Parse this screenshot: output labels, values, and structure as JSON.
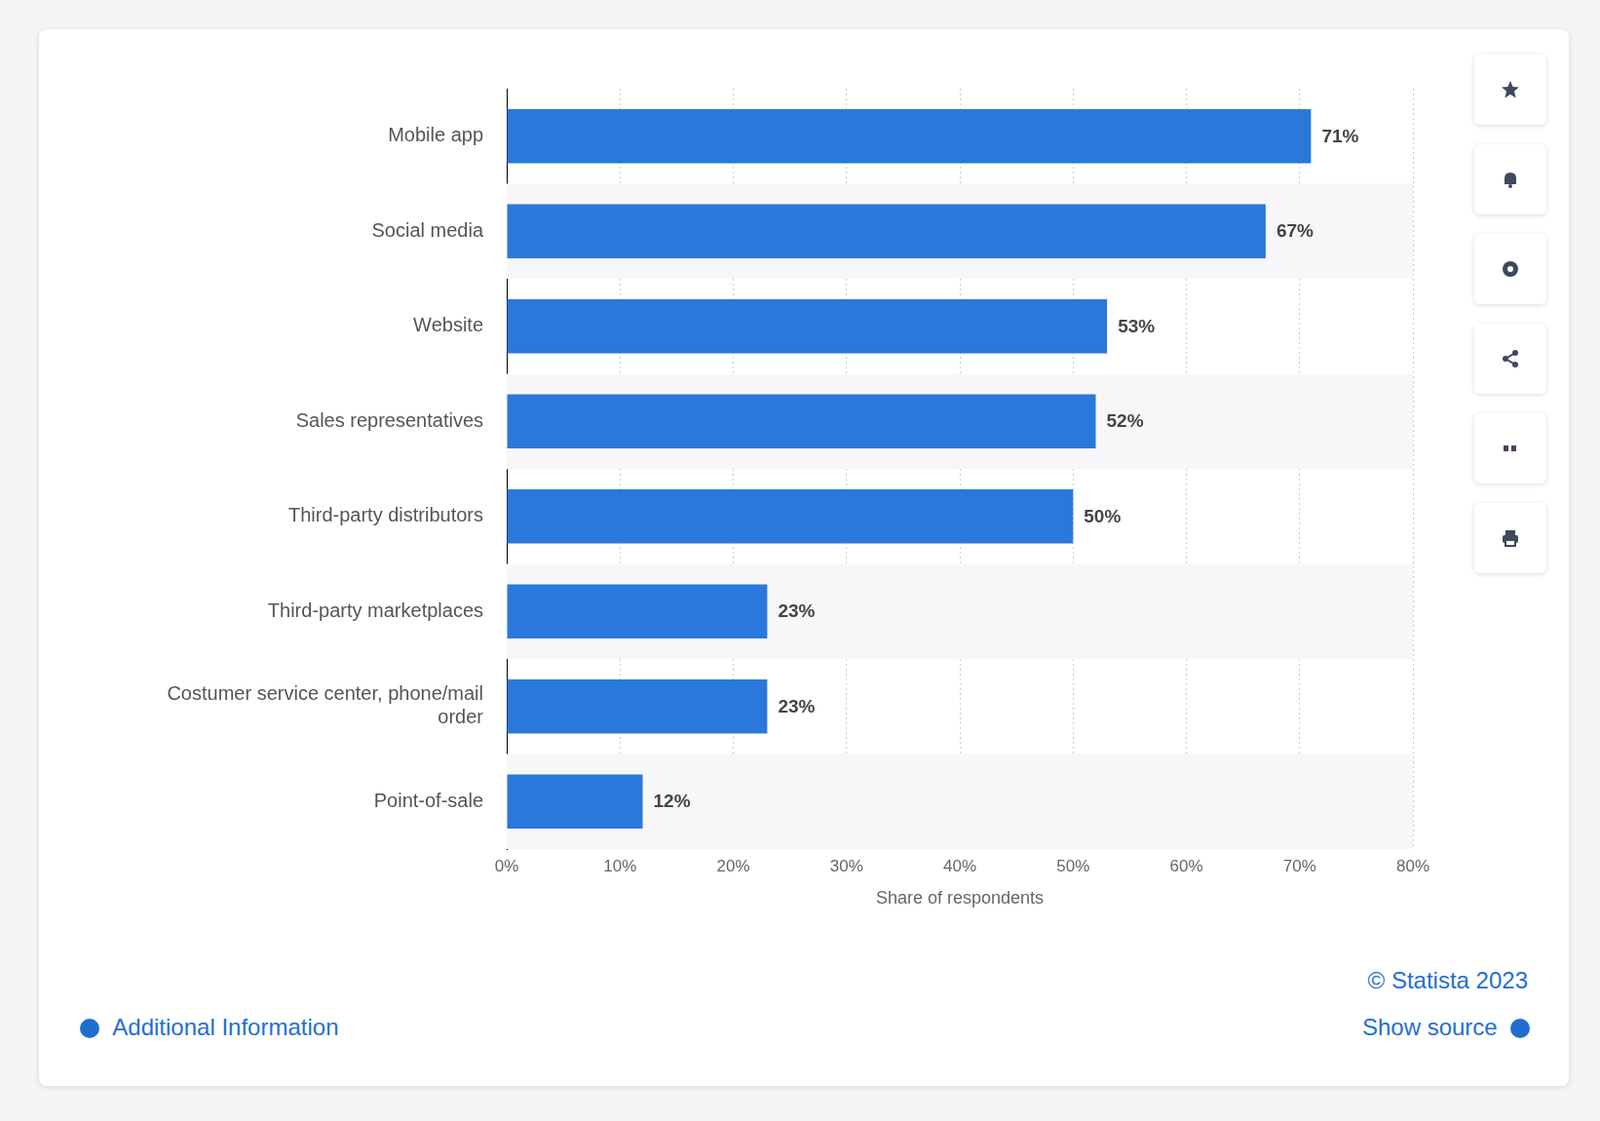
{
  "chart_data": {
    "type": "bar",
    "orientation": "horizontal",
    "categories": [
      "Mobile app",
      "Social media",
      "Website",
      "Sales representatives",
      "Third-party distributors",
      "Third-party marketplaces",
      "Costumer service center, phone/mail order",
      "Point-of-sale"
    ],
    "values": [
      71,
      67,
      53,
      52,
      50,
      23,
      23,
      12
    ],
    "value_labels": [
      "71%",
      "67%",
      "53%",
      "52%",
      "50%",
      "23%",
      "23%",
      "12%"
    ],
    "data_labels": true,
    "color": "#2a78dc",
    "xlabel": "Share of respondents",
    "xlim": [
      0,
      80
    ],
    "xticks": [
      {
        "value": 0,
        "label": "0%"
      },
      {
        "value": 10,
        "label": "10%"
      },
      {
        "value": 20,
        "label": "20%"
      },
      {
        "value": 30,
        "label": "30%"
      },
      {
        "value": 40,
        "label": "40%"
      },
      {
        "value": 50,
        "label": "50%"
      },
      {
        "value": 60,
        "label": "60%"
      },
      {
        "value": 70,
        "label": "70%"
      },
      {
        "value": 80,
        "label": "80%"
      }
    ],
    "grid": true,
    "annotations": [
      "© Statista 2023",
      "Additional Information",
      "Show source"
    ]
  }
}
